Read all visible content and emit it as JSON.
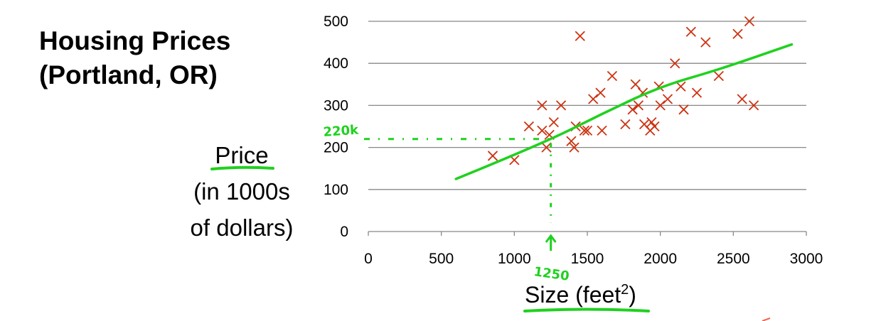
{
  "title": {
    "line1": "Housing Prices",
    "line2": "(Portland, OR)"
  },
  "ylabel": {
    "line1": "Price",
    "line2": "(in 1000s",
    "line3": "of dollars)"
  },
  "chart_data": {
    "type": "scatter",
    "title": "Housing Prices (Portland, OR)",
    "xlabel": "Size (feet²)",
    "ylabel": "Price (in 1000s of dollars)",
    "xlim": [
      0,
      3000
    ],
    "ylim": [
      0,
      500
    ],
    "x_ticks": [
      0,
      500,
      1000,
      1500,
      2000,
      2500,
      3000
    ],
    "y_ticks": [
      0,
      100,
      200,
      300,
      400,
      500
    ],
    "grid": "horizontal",
    "marker_color": "#cc3311",
    "points": [
      [
        852,
        180
      ],
      [
        1000,
        170
      ],
      [
        1100,
        250
      ],
      [
        1190,
        300
      ],
      [
        1190,
        240
      ],
      [
        1220,
        200
      ],
      [
        1240,
        230
      ],
      [
        1270,
        260
      ],
      [
        1320,
        300
      ],
      [
        1390,
        215
      ],
      [
        1410,
        200
      ],
      [
        1420,
        250
      ],
      [
        1450,
        465
      ],
      [
        1480,
        240
      ],
      [
        1500,
        240
      ],
      [
        1540,
        315
      ],
      [
        1590,
        330
      ],
      [
        1600,
        240
      ],
      [
        1670,
        370
      ],
      [
        1760,
        255
      ],
      [
        1810,
        290
      ],
      [
        1830,
        350
      ],
      [
        1850,
        300
      ],
      [
        1880,
        330
      ],
      [
        1890,
        255
      ],
      [
        1930,
        240
      ],
      [
        1940,
        260
      ],
      [
        1960,
        250
      ],
      [
        1990,
        345
      ],
      [
        2000,
        300
      ],
      [
        2050,
        315
      ],
      [
        2100,
        400
      ],
      [
        2140,
        345
      ],
      [
        2160,
        290
      ],
      [
        2210,
        475
      ],
      [
        2250,
        330
      ],
      [
        2310,
        450
      ],
      [
        2400,
        370
      ],
      [
        2530,
        470
      ],
      [
        2560,
        315
      ],
      [
        2610,
        500
      ],
      [
        2640,
        300
      ]
    ],
    "fit_line": {
      "color": "#1fd11f",
      "points": [
        [
          600,
          125
        ],
        [
          1200,
          210
        ],
        [
          1600,
          280
        ],
        [
          2000,
          345
        ],
        [
          2400,
          385
        ],
        [
          2900,
          445
        ]
      ]
    },
    "annotations": [
      {
        "label": "220k",
        "x": 1250,
        "y": 220
      },
      {
        "label": "1250",
        "x": 1250,
        "y": 0
      }
    ]
  }
}
